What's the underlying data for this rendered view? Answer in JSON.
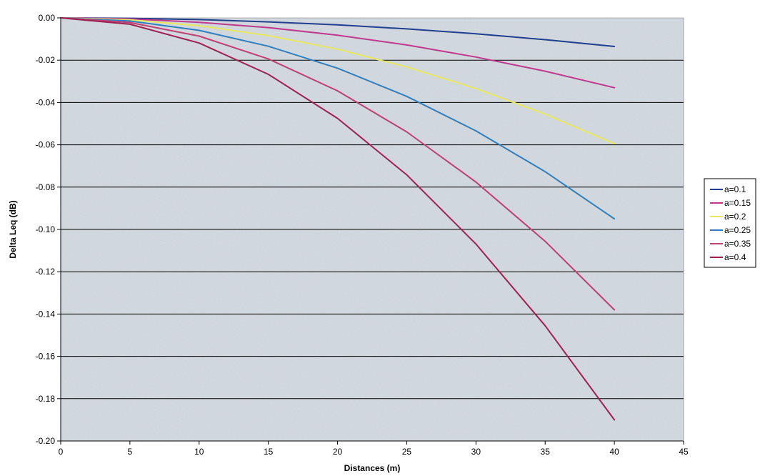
{
  "chart_data": {
    "type": "line",
    "title": "",
    "xlabel": "Distances (m)",
    "ylabel": "Delta Leq (dB)",
    "xlim": [
      0,
      45
    ],
    "ylim": [
      -0.2,
      0.0
    ],
    "x_ticks": [
      "0",
      "5",
      "10",
      "15",
      "20",
      "25",
      "30",
      "35",
      "40",
      "45"
    ],
    "y_ticks": [
      "0.00",
      "-0.02",
      "-0.04",
      "-0.06",
      "-0.08",
      "-0.10",
      "-0.12",
      "-0.14",
      "-0.16",
      "-0.18",
      "-0.20"
    ],
    "grid": "horizontal",
    "legend": "right",
    "x": [
      0,
      5,
      10,
      15,
      20,
      25,
      30,
      35,
      40
    ],
    "series": [
      {
        "name": "a=0.1",
        "color": "#1f3f8f",
        "values": [
          0,
          -0.0002,
          -0.0008,
          -0.0019,
          -0.0033,
          -0.0052,
          -0.0075,
          -0.0103,
          -0.0135
        ]
      },
      {
        "name": "a=0.15",
        "color": "#c0398f",
        "values": [
          0,
          -0.0005,
          -0.0021,
          -0.0046,
          -0.0082,
          -0.0128,
          -0.0185,
          -0.0252,
          -0.033
        ]
      },
      {
        "name": "a=0.2",
        "color": "#e8e860",
        "values": [
          0,
          -0.0009,
          -0.0037,
          -0.0084,
          -0.0148,
          -0.0232,
          -0.0334,
          -0.0455,
          -0.0595
        ]
      },
      {
        "name": "a=0.25",
        "color": "#2f7fc0",
        "values": [
          0,
          -0.0015,
          -0.0059,
          -0.0134,
          -0.0238,
          -0.0371,
          -0.0534,
          -0.0727,
          -0.095
        ]
      },
      {
        "name": "a=0.35",
        "color": "#c04070",
        "values": [
          0,
          -0.0022,
          -0.0086,
          -0.0194,
          -0.0345,
          -0.0539,
          -0.0776,
          -0.1056,
          -0.138
        ]
      },
      {
        "name": "a=0.4",
        "color": "#a02050",
        "values": [
          0,
          -0.003,
          -0.0119,
          -0.0267,
          -0.0475,
          -0.0742,
          -0.1069,
          -0.1455,
          -0.19
        ]
      }
    ]
  }
}
